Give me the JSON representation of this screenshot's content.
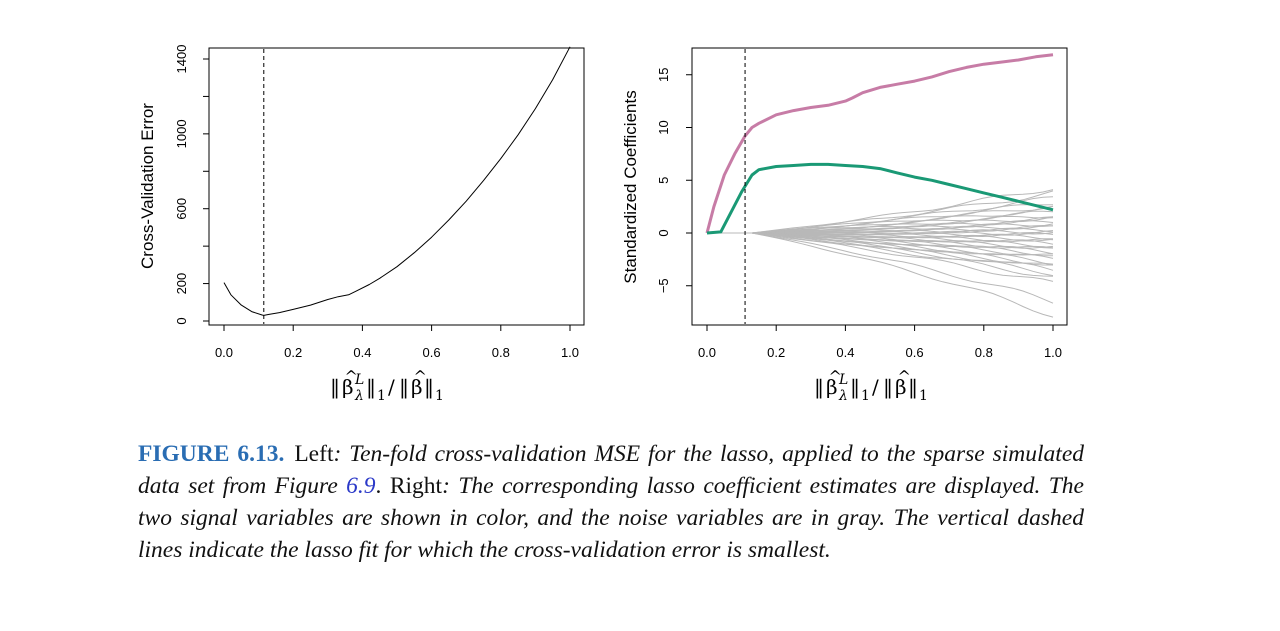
{
  "chart_data": [
    {
      "type": "line",
      "panel": "left",
      "xlabel": "||β̂^L_λ||_1/||β̂||_1",
      "ylabel": "Cross-Validation Error",
      "xlim": [
        0,
        1
      ],
      "ylim": [
        0,
        1400
      ],
      "xticks": [
        "0.0",
        "0.2",
        "0.4",
        "0.6",
        "0.8",
        "1.0"
      ],
      "yticks": [
        "0",
        "200",
        "600",
        "1000",
        "1400"
      ],
      "ytick_values": [
        0,
        200,
        400,
        600,
        800,
        1000,
        1200,
        1400
      ],
      "vline": 0.115,
      "series": [
        {
          "color": "#000000",
          "x": [
            0.0,
            0.02,
            0.05,
            0.08,
            0.11,
            0.115,
            0.13,
            0.16,
            0.2,
            0.25,
            0.3,
            0.33,
            0.36,
            0.38,
            0.42,
            0.45,
            0.5,
            0.55,
            0.6,
            0.65,
            0.7,
            0.75,
            0.8,
            0.85,
            0.9,
            0.95,
            1.0
          ],
          "y": [
            205,
            140,
            85,
            50,
            32,
            30,
            35,
            45,
            62,
            85,
            115,
            130,
            140,
            158,
            195,
            228,
            290,
            365,
            448,
            540,
            640,
            750,
            868,
            995,
            1135,
            1290,
            1465
          ]
        }
      ]
    },
    {
      "type": "line",
      "panel": "right",
      "xlabel": "||β̂^L_λ||_1/||β̂||_1",
      "ylabel": "Standardized Coefficients",
      "xlim": [
        0,
        1
      ],
      "ylim": [
        -8,
        17
      ],
      "xticks": [
        "0.0",
        "0.2",
        "0.4",
        "0.6",
        "0.8",
        "1.0"
      ],
      "yticks": [
        "−5",
        "0",
        "5",
        "10",
        "15"
      ],
      "ytick_values": [
        -5,
        0,
        5,
        10,
        15
      ],
      "vline": 0.11,
      "series": [
        {
          "role": "signal",
          "color": "#c77ca6",
          "x": [
            0.0,
            0.02,
            0.05,
            0.08,
            0.11,
            0.13,
            0.15,
            0.2,
            0.25,
            0.3,
            0.35,
            0.4,
            0.42,
            0.45,
            0.5,
            0.55,
            0.6,
            0.65,
            0.7,
            0.75,
            0.8,
            0.85,
            0.9,
            0.95,
            1.0
          ],
          "y": [
            0,
            2.5,
            5.5,
            7.5,
            9.2,
            10.0,
            10.4,
            11.2,
            11.6,
            11.9,
            12.1,
            12.5,
            12.8,
            13.3,
            13.8,
            14.1,
            14.4,
            14.8,
            15.3,
            15.7,
            16.0,
            16.2,
            16.4,
            16.7,
            16.9
          ]
        },
        {
          "role": "signal",
          "color": "#1a9975",
          "x": [
            0.0,
            0.04,
            0.07,
            0.1,
            0.13,
            0.15,
            0.2,
            0.25,
            0.3,
            0.35,
            0.4,
            0.45,
            0.5,
            0.55,
            0.6,
            0.65,
            0.7,
            0.75,
            0.8,
            0.85,
            0.9,
            0.95,
            1.0
          ],
          "y": [
            0,
            0.1,
            2.0,
            3.9,
            5.5,
            6.0,
            6.3,
            6.4,
            6.5,
            6.5,
            6.4,
            6.3,
            6.1,
            5.7,
            5.3,
            5.0,
            4.6,
            4.2,
            3.8,
            3.4,
            3.0,
            2.6,
            2.2
          ]
        }
      ],
      "noise": {
        "color": "#b8b8b8",
        "count": 38,
        "x_start": 0.13,
        "endpoints": [
          4.3,
          3.8,
          3.3,
          2.9,
          2.6,
          2.3,
          2.0,
          1.7,
          1.5,
          1.3,
          1.1,
          0.9,
          0.7,
          0.5,
          0.3,
          0.15,
          0.0,
          -0.2,
          -0.4,
          -0.6,
          -0.8,
          -1.0,
          -1.2,
          -1.4,
          -1.6,
          -1.8,
          -2.0,
          -2.2,
          -2.5,
          -2.8,
          -3.0,
          -3.2,
          -3.5,
          -3.8,
          -4.2,
          -4.8,
          -6.5,
          -7.8
        ]
      }
    }
  ],
  "caption": {
    "label": "FIGURE 6.13.",
    "left_word": "Left",
    "part1": ": Ten-fold cross-validation MSE for the lasso, applied to the sparse simulated data set from Figure ",
    "ref": "6.9",
    "part2": ". ",
    "right_word": "Right",
    "part3": ": The corresponding lasso coefficient estimates are displayed. The two signal variables are shown in color, and the noise variables are in gray. The vertical dashed lines indicate the lasso fit for which the cross-validation error is smallest."
  }
}
